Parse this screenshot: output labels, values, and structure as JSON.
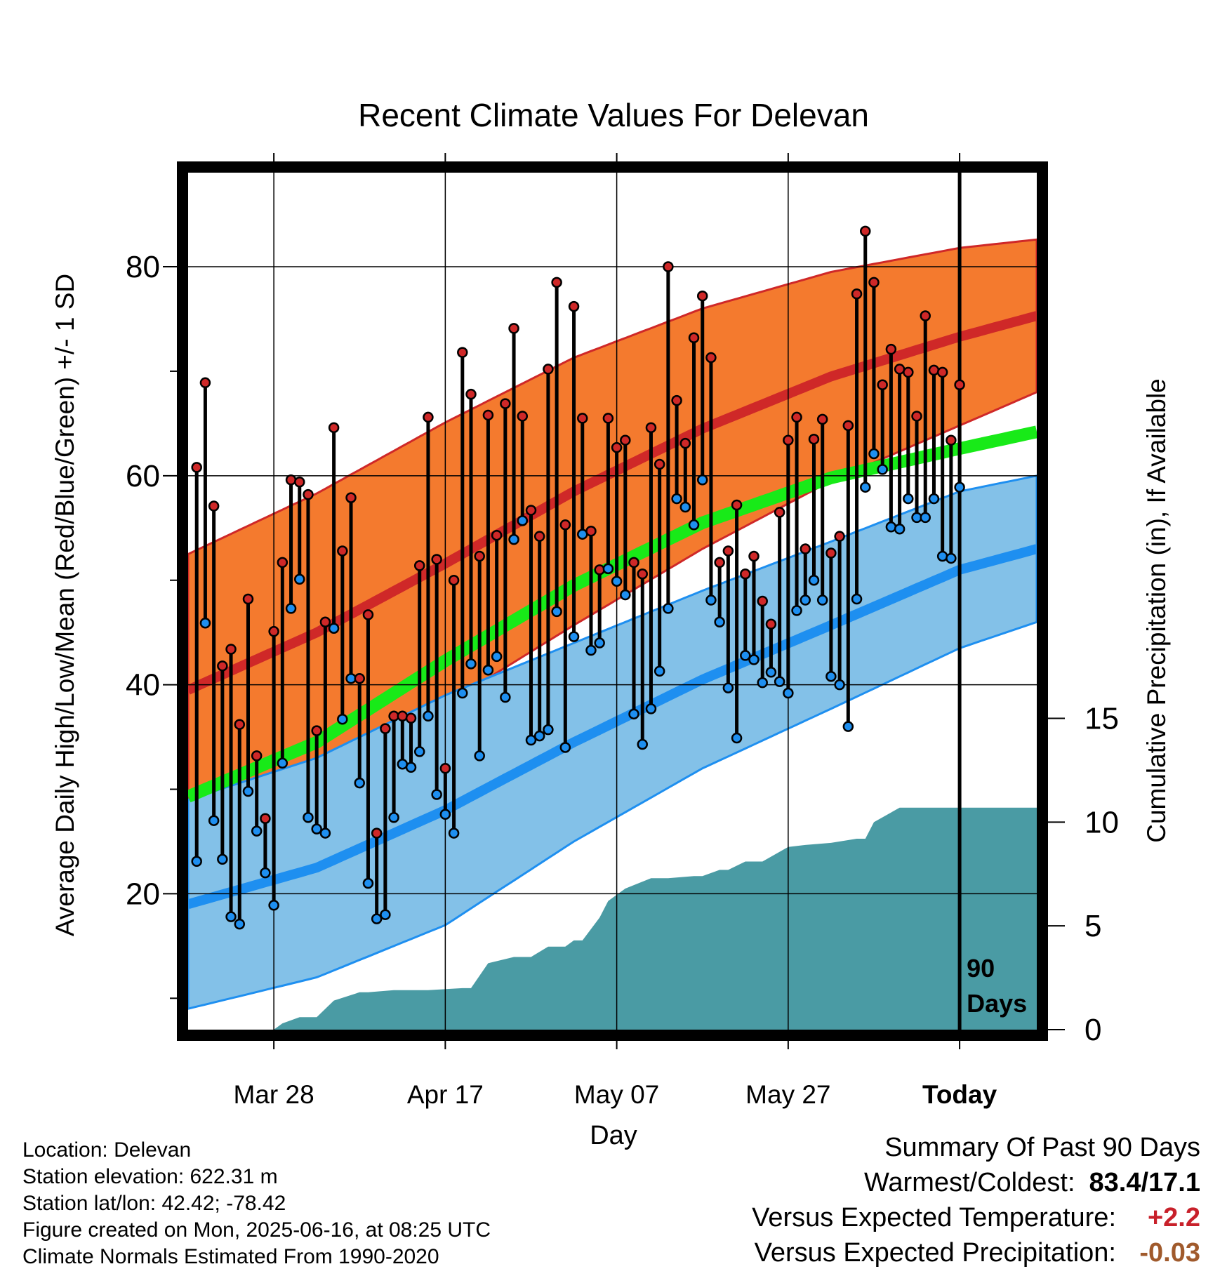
{
  "chart_data": {
    "type": "line",
    "title": "Recent Climate Values For Delevan",
    "xlabel": "Day",
    "ylabel_left": "Average Daily High/Low/Mean (Red/Blue/Green) +/- 1 SD",
    "ylabel_right": "Cumulative Precipitation (in), If Available",
    "x_range_days": [
      -90,
      9
    ],
    "x_ticks": [
      {
        "day": -80,
        "label": "Mar 28"
      },
      {
        "day": -60,
        "label": "Apr 17"
      },
      {
        "day": -40,
        "label": "May 07"
      },
      {
        "day": -20,
        "label": "May 27"
      },
      {
        "day": 0,
        "label": "Today"
      }
    ],
    "ylim": [
      7,
      89
    ],
    "y_ticks": [
      20,
      40,
      60,
      80
    ],
    "y2lim": [
      0,
      41.3
    ],
    "y2_ticks": [
      0,
      5,
      10,
      15
    ],
    "grid": true,
    "today_marker_label": [
      "90",
      "Days"
    ],
    "normals": {
      "days": [
        -90,
        -75,
        -60,
        -45,
        -30,
        -15,
        0,
        9
      ],
      "high_mean": [
        39.5,
        45.0,
        51.6,
        58.5,
        64.5,
        69.5,
        73.3,
        75.3
      ],
      "high_sd": [
        13.0,
        13.3,
        13.5,
        12.8,
        11.5,
        10.0,
        8.5,
        7.3
      ],
      "low_mean": [
        19.0,
        22.5,
        28.0,
        34.5,
        40.5,
        45.7,
        51.0,
        53.0
      ],
      "low_sd": [
        10.0,
        10.5,
        11.0,
        9.5,
        8.5,
        8.0,
        7.5,
        7.0
      ],
      "avg_mean": [
        29.3,
        34.5,
        42.3,
        49.5,
        55.5,
        59.8,
        62.6,
        64.2
      ]
    },
    "colors": {
      "high_band": "#f47a2e",
      "high_line": "#cf2828",
      "low_band": "#83c1e8",
      "low_line": "#1e8ff0",
      "avg_line": "#18ea18",
      "precip": "#4a9ba4",
      "high_dot": "#cf2828",
      "low_dot": "#1e8ff0"
    },
    "series": [
      {
        "name": "High",
        "values": [
          60.8,
          68.9,
          57.1,
          41.8,
          43.4,
          36.2,
          48.2,
          33.2,
          27.2,
          45.1,
          51.7,
          59.6,
          59.4,
          58.2,
          35.6,
          46.0,
          64.6,
          52.8,
          57.9,
          40.6,
          46.7,
          25.8,
          35.8,
          37.0,
          37.0,
          36.8,
          51.4,
          65.6,
          52.0,
          32.0,
          50.0,
          71.8,
          67.8,
          52.3,
          65.8,
          54.3,
          66.9,
          74.1,
          65.7,
          56.7,
          54.2,
          70.2,
          78.5,
          55.3,
          76.2,
          65.5,
          54.7,
          51.0,
          65.5,
          62.7,
          63.4,
          51.7,
          50.6,
          64.6,
          61.1,
          80.0,
          67.2,
          63.1,
          73.2,
          77.2,
          71.3,
          51.7,
          52.8,
          57.2,
          50.6,
          52.3,
          48.0,
          45.8,
          56.5,
          63.4,
          65.6,
          53.0,
          63.5,
          65.4,
          52.6,
          54.2,
          64.8,
          77.4,
          83.4,
          78.5,
          68.7,
          72.1,
          70.2,
          69.9,
          65.7,
          75.3,
          70.1,
          69.9,
          63.4,
          68.7
        ]
      },
      {
        "name": "Low",
        "values": [
          23.1,
          45.9,
          27.0,
          23.3,
          17.8,
          17.1,
          29.8,
          26.0,
          22.0,
          18.9,
          32.5,
          47.3,
          50.1,
          27.3,
          26.2,
          25.8,
          45.4,
          36.7,
          40.6,
          30.6,
          21.0,
          17.6,
          18.0,
          27.3,
          32.4,
          32.1,
          33.6,
          37.0,
          29.5,
          27.6,
          25.8,
          39.2,
          42.0,
          33.2,
          41.4,
          42.7,
          38.8,
          53.9,
          55.7,
          34.7,
          35.1,
          35.7,
          47.0,
          34.0,
          44.6,
          54.4,
          43.3,
          44.0,
          51.1,
          49.9,
          48.6,
          37.2,
          34.3,
          37.7,
          41.3,
          47.3,
          57.8,
          57.0,
          55.3,
          59.6,
          48.1,
          46.0,
          39.7,
          34.9,
          42.8,
          42.4,
          40.2,
          41.2,
          40.3,
          39.2,
          47.1,
          48.1,
          50.0,
          48.1,
          40.8,
          40.0,
          36.0,
          48.2,
          58.9,
          62.1,
          60.6,
          55.1,
          54.9,
          57.8,
          56.0,
          56.0,
          57.8,
          52.3,
          52.1,
          58.9
        ]
      }
    ],
    "precip_cumulative": {
      "days": [
        -90,
        -80,
        -79,
        -77,
        -75,
        -73,
        -70,
        -69,
        -66,
        -62,
        -58,
        -57,
        -55,
        -52,
        -50,
        -48,
        -46,
        -45,
        -44,
        -42,
        -41,
        -39,
        -36,
        -35,
        -34,
        -31,
        -30,
        -28,
        -27,
        -25,
        -23,
        -20,
        -18,
        -15,
        -12,
        -11,
        -10,
        -7,
        -6,
        -4,
        -3,
        0,
        9
      ],
      "values": [
        0,
        0,
        0.3,
        0.6,
        0.6,
        1.4,
        1.8,
        1.8,
        1.9,
        1.9,
        2.0,
        2.0,
        3.2,
        3.5,
        3.5,
        4.0,
        4.0,
        4.3,
        4.3,
        5.4,
        6.2,
        6.8,
        7.3,
        7.3,
        7.3,
        7.4,
        7.4,
        7.7,
        7.7,
        8.1,
        8.1,
        8.8,
        8.9,
        9.0,
        9.2,
        9.2,
        10.0,
        10.7,
        10.7,
        10.7,
        10.7,
        10.7,
        10.7
      ]
    }
  },
  "info": {
    "location": "Location: Delevan",
    "elevation": "Station elevation: 622.31 m",
    "latlon": "Station lat/lon: 42.42; -78.42",
    "created": "Figure created on Mon, 2025-06-16, at 08:25 UTC",
    "normals": "Climate Normals Estimated From 1990-2020"
  },
  "summary": {
    "title": "Summary Of Past 90 Days",
    "warmest_label": "Warmest/Coldest:",
    "warmest_value": "83.4/17.1",
    "temp_label": "Versus Expected Temperature:",
    "temp_value": "+2.2",
    "temp_color": "#c8202a",
    "precip_label": "Versus Expected Precipitation:",
    "precip_value": "-0.03",
    "precip_color": "#a05a2c"
  }
}
